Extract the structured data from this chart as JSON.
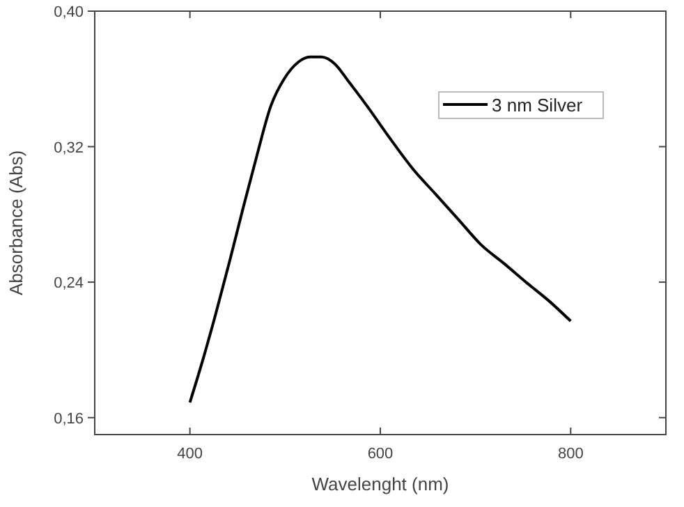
{
  "chart_data": {
    "type": "line",
    "xlabel": "Wavelenght (nm)",
    "ylabel": "Absorbance (Abs)",
    "xlim": [
      300,
      900
    ],
    "xticks": [
      400,
      600,
      800
    ],
    "ylim": [
      0.15,
      0.4
    ],
    "yticks": [
      {
        "value": 0.16,
        "label": "0,16"
      },
      {
        "value": 0.24,
        "label": "0,24"
      },
      {
        "value": 0.32,
        "label": "0,32"
      },
      {
        "value": 0.4,
        "label": "0,40"
      }
    ],
    "x": [
      400,
      413,
      427,
      442,
      456,
      470,
      485,
      499,
      514,
      526,
      538,
      552,
      566,
      586,
      610,
      634,
      658,
      682,
      706,
      730,
      753,
      777,
      800
    ],
    "series": [
      {
        "name": "3 nm Silver",
        "color": "#000000",
        "values": [
          0.169,
          0.193,
          0.221,
          0.253,
          0.284,
          0.314,
          0.344,
          0.36,
          0.37,
          0.373,
          0.373,
          0.369,
          0.359,
          0.344,
          0.325,
          0.307,
          0.292,
          0.277,
          0.262,
          0.251,
          0.24,
          0.229,
          0.217
        ]
      }
    ],
    "legend": "top right",
    "grid": false,
    "line_style": "solid"
  }
}
